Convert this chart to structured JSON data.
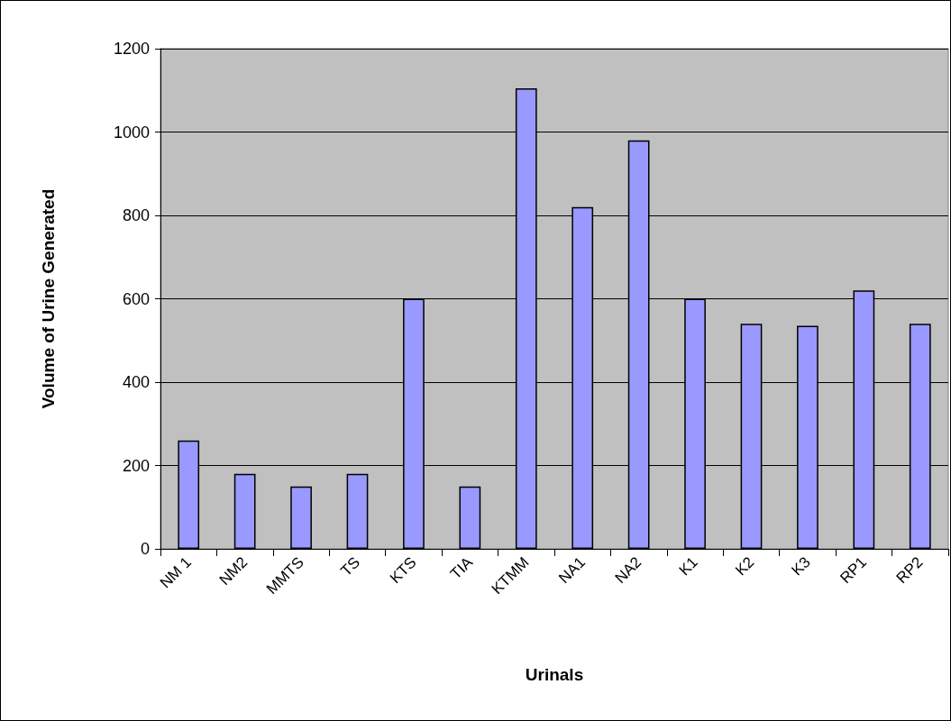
{
  "chart_data": {
    "type": "bar",
    "xlabel": "Urinals",
    "ylabel": "Volume of Urine Generated",
    "categories": [
      "NM 1",
      "NM2",
      "MMTS",
      "TS",
      "KTS",
      "TIA",
      "KTMM",
      "NA1",
      "NA2",
      "K1",
      "K2",
      "K3",
      "RP1",
      "RP2"
    ],
    "values": [
      260,
      180,
      150,
      180,
      600,
      150,
      1105,
      820,
      980,
      600,
      540,
      535,
      620,
      540
    ],
    "color": "#9999ff",
    "ylim": [
      0,
      1200
    ],
    "yticks": [
      0,
      200,
      400,
      600,
      800,
      1000,
      1200
    ],
    "grid": "y"
  }
}
